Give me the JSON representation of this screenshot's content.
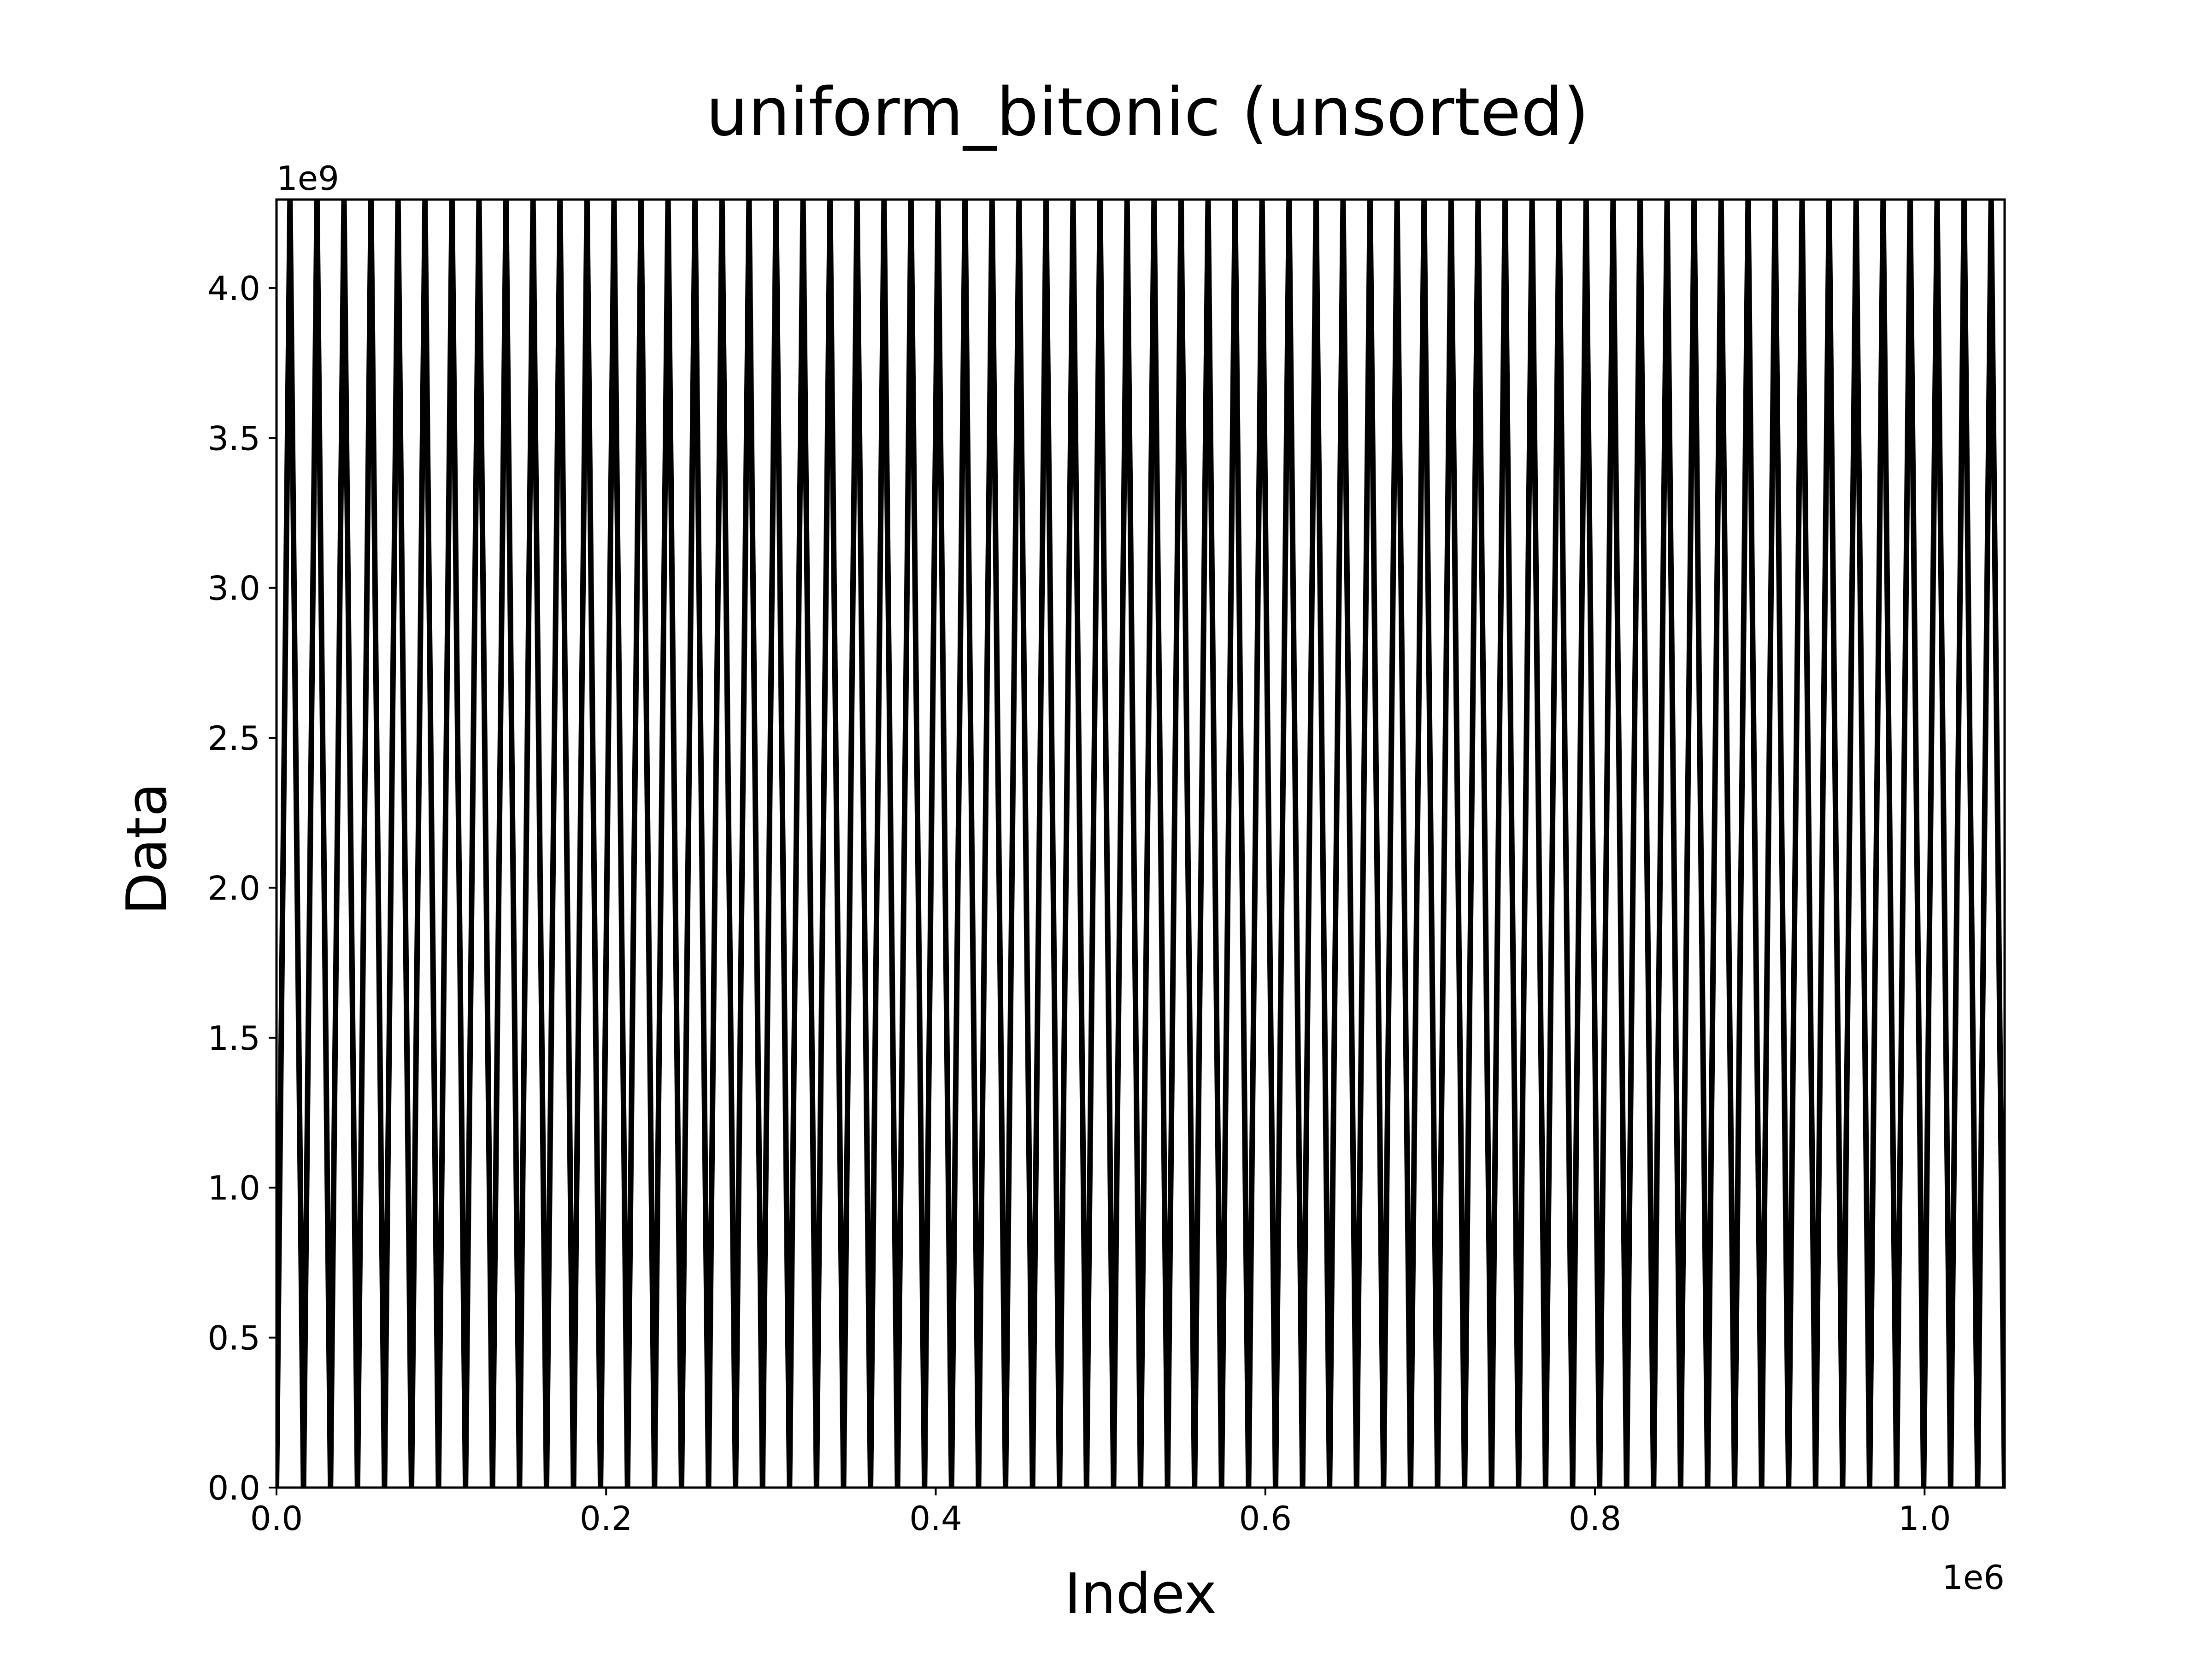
{
  "chart_data": {
    "type": "line",
    "title": "uniform_bitonic (unsorted)",
    "xlabel": "Index",
    "ylabel": "Data",
    "x_offset_label": "1e6",
    "y_offset_label": "1e9",
    "xlim": [
      0,
      1048576
    ],
    "ylim": [
      0,
      4294967295
    ],
    "xticks": [
      0.0,
      0.2,
      0.4,
      0.6,
      0.8,
      1.0
    ],
    "xtick_labels": [
      "0.0",
      "0.2",
      "0.4",
      "0.6",
      "0.8",
      "1.0"
    ],
    "yticks": [
      0.0,
      0.5,
      1.0,
      1.5,
      2.0,
      2.5,
      3.0,
      3.5,
      4.0
    ],
    "ytick_labels": [
      "0.0",
      "0.5",
      "1.0",
      "1.5",
      "2.0",
      "2.5",
      "3.0",
      "3.5",
      "4.0"
    ],
    "grid": false,
    "legend": "none",
    "series": [
      {
        "color": "#000000",
        "pattern": "triangle-wave",
        "cycles": 64,
        "y_min": 0,
        "y_max": 4294967295,
        "x_start": 0,
        "x_end": 1048576
      }
    ]
  }
}
